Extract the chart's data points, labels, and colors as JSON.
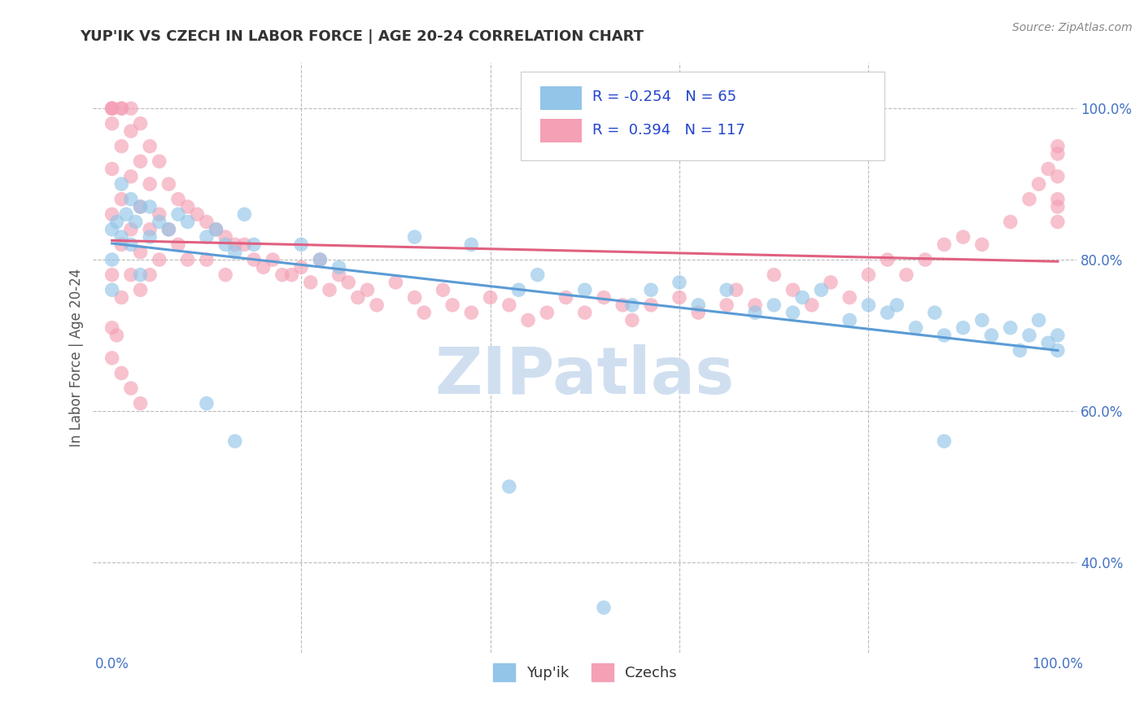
{
  "title": "YUP'IK VS CZECH IN LABOR FORCE | AGE 20-24 CORRELATION CHART",
  "source_text": "Source: ZipAtlas.com",
  "ylabel": "In Labor Force | Age 20-24",
  "xlim": [
    -0.02,
    1.02
  ],
  "ylim": [
    0.28,
    1.06
  ],
  "xticks": [
    0.0,
    0.2,
    0.4,
    0.6,
    0.8,
    1.0
  ],
  "yticks": [
    0.4,
    0.6,
    0.8,
    1.0
  ],
  "xticklabels": [
    "0.0%",
    "",
    "",
    "",
    "",
    "100.0%"
  ],
  "yticklabels": [
    "40.0%",
    "60.0%",
    "80.0%",
    "100.0%"
  ],
  "watermark": "ZIPatlas",
  "legend_labels": [
    "Yup'ik",
    "Czechs"
  ],
  "blue_color": "#92C5E8",
  "pink_color": "#F4A0B5",
  "blue_line_color": "#5B9BD5",
  "pink_line_color": "#E06080",
  "r_blue": -0.254,
  "n_blue": 65,
  "r_pink": 0.394,
  "n_pink": 117,
  "background_color": "#ffffff",
  "grid_color": "#bbbbbb",
  "title_color": "#333333",
  "axis_label_color": "#555555",
  "tick_color": "#4472C4",
  "watermark_color": "#d0dff0"
}
